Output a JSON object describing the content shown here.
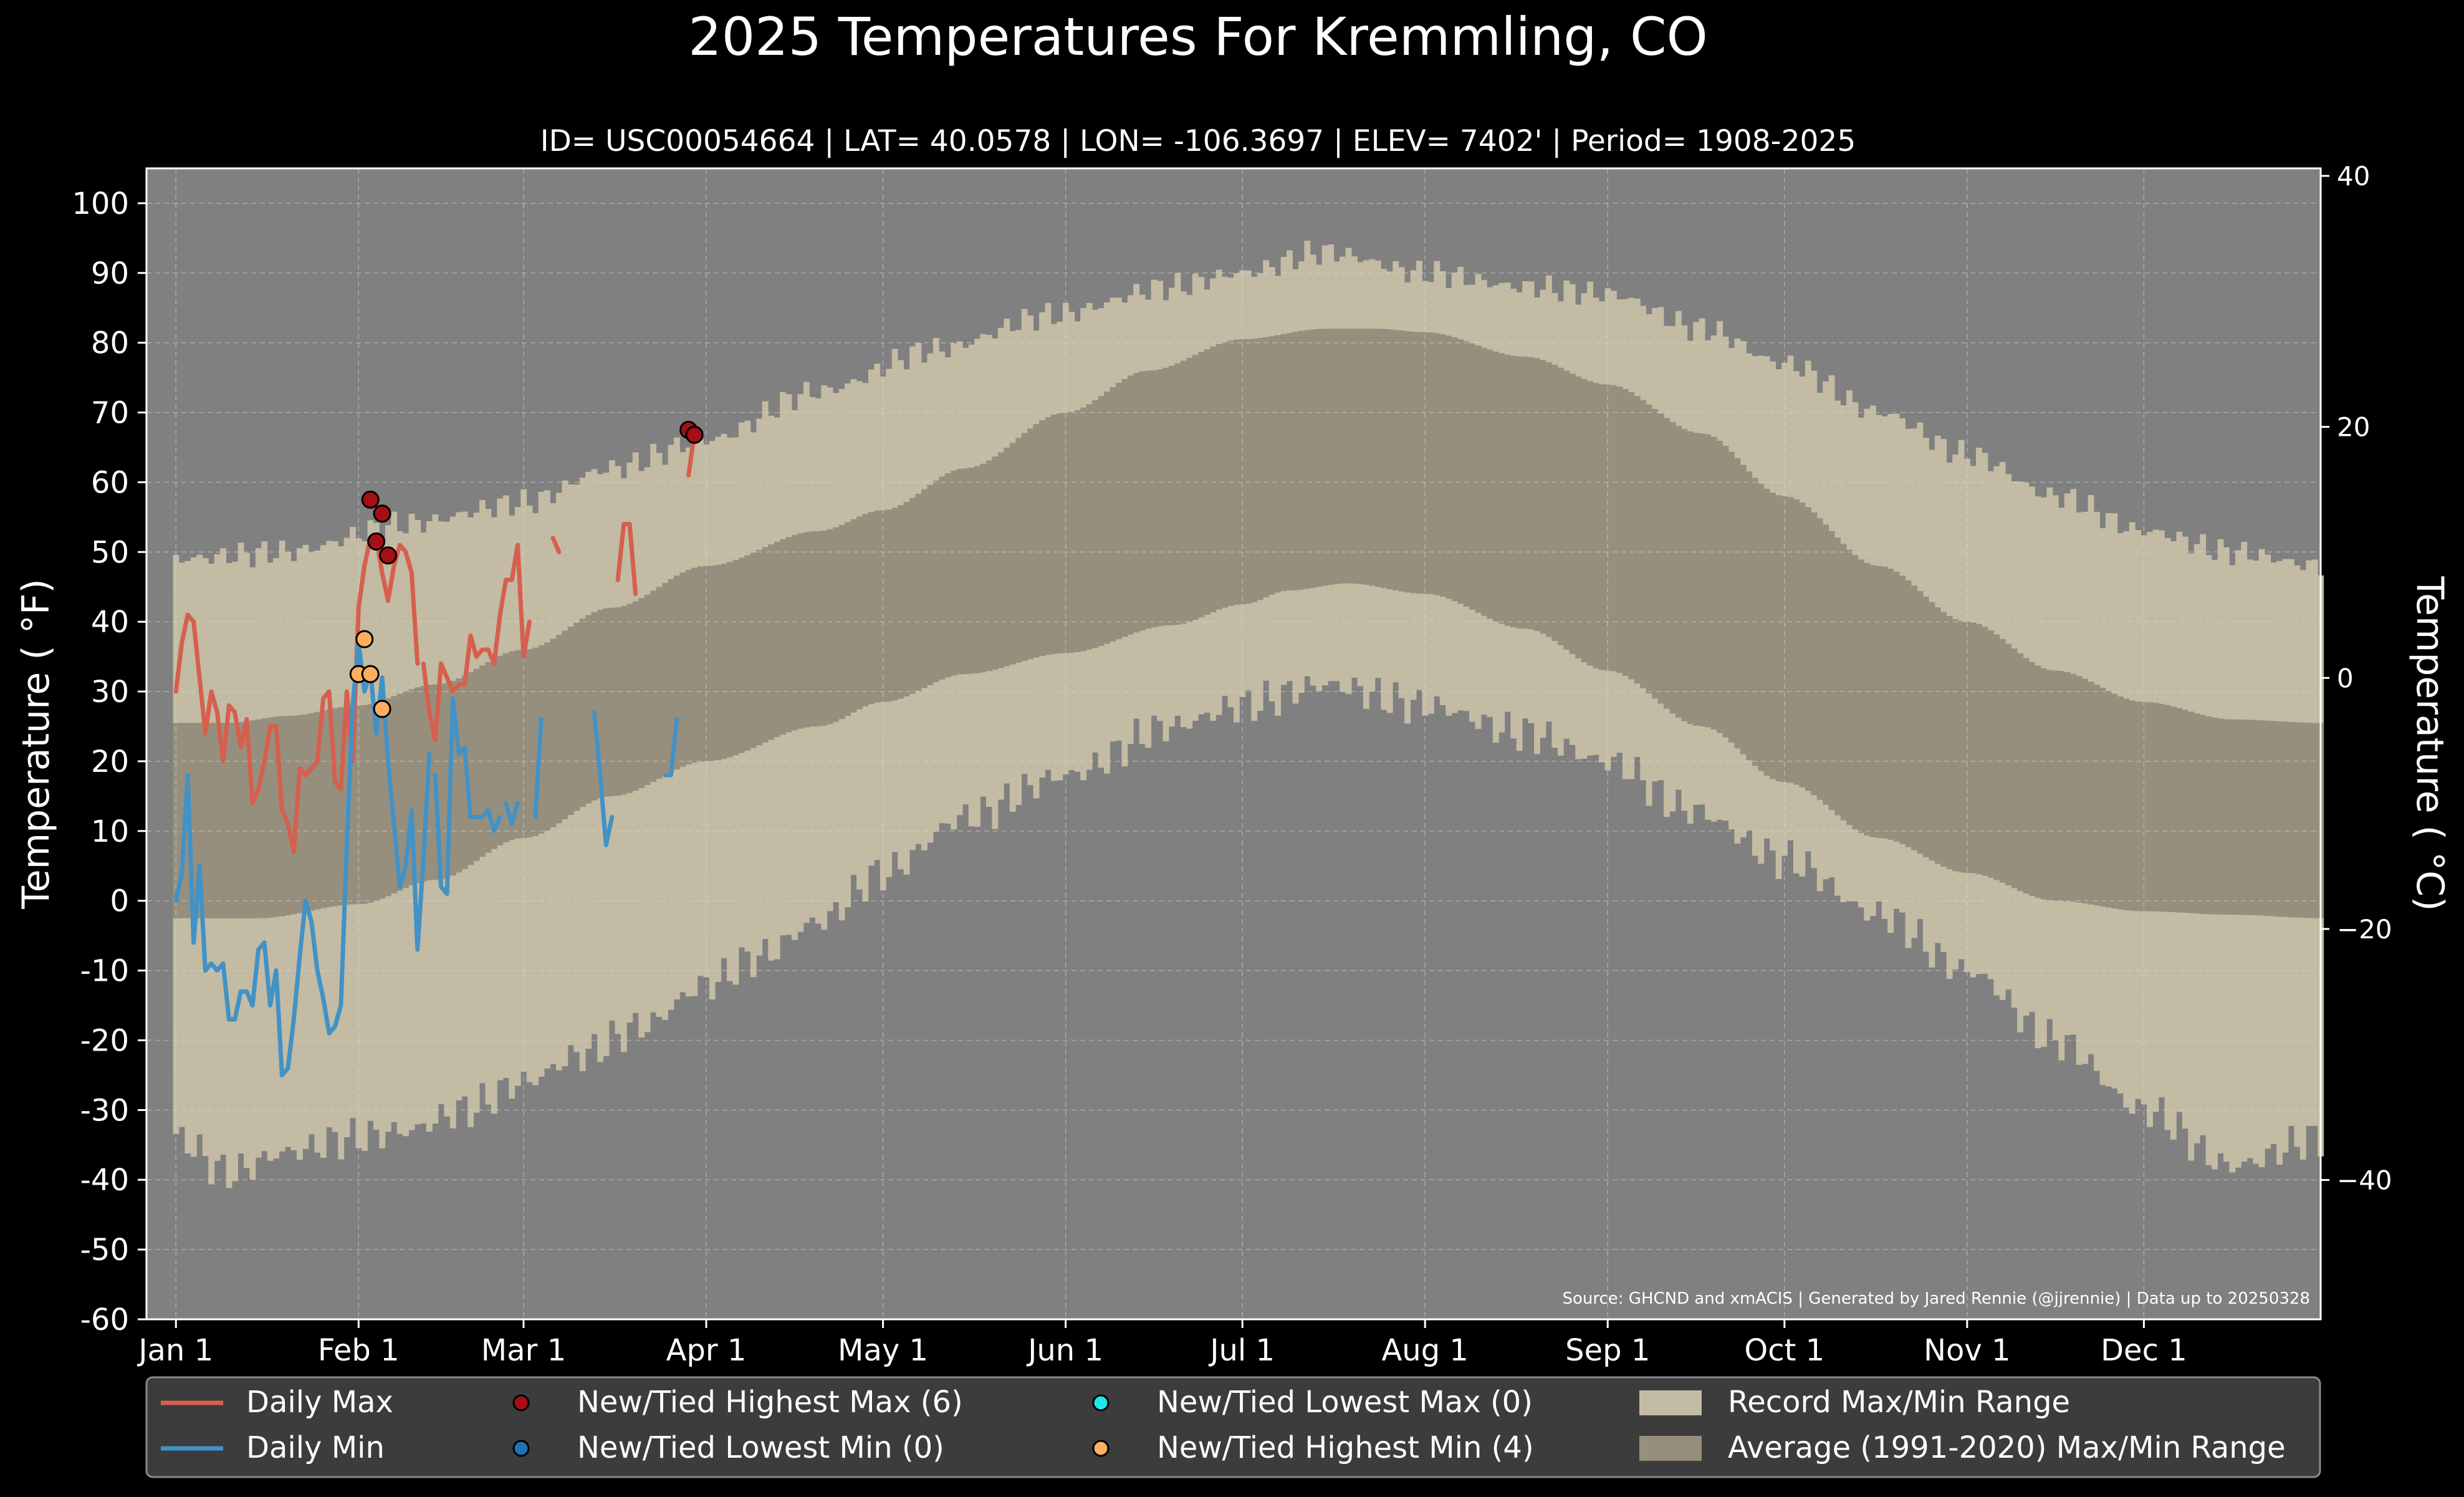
{
  "chart_data": {
    "type": "area",
    "title": "2025 Temperatures For Kremmling, CO",
    "subtitle": "ID= USC00054664 | LAT= 40.0578 | LON= -106.3697 | ELEV= 7402' | Period= 1908-2025",
    "ylabel": "Temperature ($^\\circ$F)",
    "ylabel_display": "Temperature ( °F)",
    "y2label_display": "Temperature ( °C)",
    "source": "Source: GHCND and xmACIS | Generated by Jared Rennie (@jjrennie) | Data up to 20250328",
    "ylim": [
      -60,
      105
    ],
    "y2lim": [
      -51.1,
      40.6
    ],
    "grid": true,
    "legend_location": "bottom",
    "y_ticks": [
      -60,
      -50,
      -40,
      -30,
      -20,
      -10,
      0,
      10,
      20,
      30,
      40,
      50,
      60,
      70,
      80,
      90,
      100
    ],
    "y2_ticks": [
      {
        "value": -40,
        "label": "−40"
      },
      {
        "value": -20,
        "label": "−20"
      },
      {
        "value": 0,
        "label": "0"
      },
      {
        "value": 20,
        "label": "20"
      },
      {
        "value": 40,
        "label": "40"
      }
    ],
    "x_ticks": [
      {
        "day": 1,
        "label": "Jan 1"
      },
      {
        "day": 32,
        "label": "Feb 1"
      },
      {
        "day": 60,
        "label": "Mar 1"
      },
      {
        "day": 91,
        "label": "Apr 1"
      },
      {
        "day": 121,
        "label": "May 1"
      },
      {
        "day": 152,
        "label": "Jun 1"
      },
      {
        "day": 182,
        "label": "Jul 1"
      },
      {
        "day": 213,
        "label": "Aug 1"
      },
      {
        "day": 244,
        "label": "Sep 1"
      },
      {
        "day": 274,
        "label": "Oct 1"
      },
      {
        "day": 305,
        "label": "Nov 1"
      },
      {
        "day": 335,
        "label": "Dec 1"
      }
    ],
    "xlim": [
      -4,
      365
    ],
    "colors": {
      "background": "#000000",
      "plot_bg": "#808080",
      "record": "#c3bba3",
      "average": "#978f7e",
      "daily_max": "#d65f4e",
      "daily_min": "#4292c6",
      "highest_max_marker": "#a50f15",
      "lowest_min_marker": "#2171b5",
      "lowest_max_marker": "#1ee8e8",
      "highest_min_marker": "#fdae61",
      "legend_bg": "#3c3c3c",
      "text": "#ffffff"
    },
    "record_high_knots": [
      [
        1,
        49
      ],
      [
        20,
        50
      ],
      [
        40,
        54
      ],
      [
        60,
        57
      ],
      [
        75,
        62
      ],
      [
        91,
        66
      ],
      [
        110,
        73
      ],
      [
        130,
        79
      ],
      [
        150,
        84
      ],
      [
        170,
        88
      ],
      [
        182,
        90
      ],
      [
        196,
        93
      ],
      [
        213,
        90
      ],
      [
        230,
        88
      ],
      [
        244,
        87
      ],
      [
        260,
        82
      ],
      [
        274,
        77
      ],
      [
        290,
        70
      ],
      [
        305,
        64
      ],
      [
        320,
        58
      ],
      [
        335,
        53
      ],
      [
        350,
        50
      ],
      [
        365,
        48
      ]
    ],
    "record_low_knots": [
      [
        1,
        -34
      ],
      [
        10,
        -39
      ],
      [
        20,
        -36
      ],
      [
        31,
        -34
      ],
      [
        40,
        -33
      ],
      [
        50,
        -30
      ],
      [
        60,
        -26
      ],
      [
        70,
        -22
      ],
      [
        80,
        -18
      ],
      [
        91,
        -12
      ],
      [
        100,
        -8
      ],
      [
        110,
        -3
      ],
      [
        121,
        4
      ],
      [
        135,
        12
      ],
      [
        152,
        18
      ],
      [
        170,
        25
      ],
      [
        182,
        28
      ],
      [
        196,
        31
      ],
      [
        213,
        28
      ],
      [
        230,
        24
      ],
      [
        244,
        20
      ],
      [
        258,
        13
      ],
      [
        274,
        6
      ],
      [
        290,
        -2
      ],
      [
        305,
        -10
      ],
      [
        320,
        -20
      ],
      [
        335,
        -30
      ],
      [
        350,
        -38
      ],
      [
        365,
        -34
      ]
    ],
    "average_high_knots": [
      [
        1,
        25.5
      ],
      [
        10,
        25.5
      ],
      [
        20,
        26.5
      ],
      [
        32,
        28
      ],
      [
        45,
        31
      ],
      [
        60,
        36
      ],
      [
        75,
        42
      ],
      [
        91,
        48
      ],
      [
        110,
        53
      ],
      [
        121,
        56
      ],
      [
        135,
        62
      ],
      [
        152,
        70
      ],
      [
        166,
        76
      ],
      [
        182,
        80.5
      ],
      [
        196,
        82
      ],
      [
        205,
        82
      ],
      [
        213,
        81.5
      ],
      [
        230,
        78
      ],
      [
        244,
        74
      ],
      [
        260,
        67
      ],
      [
        274,
        58
      ],
      [
        290,
        48
      ],
      [
        305,
        40
      ],
      [
        320,
        33
      ],
      [
        335,
        28.5
      ],
      [
        350,
        26
      ],
      [
        365,
        25.5
      ]
    ],
    "average_low_knots": [
      [
        1,
        -2.5
      ],
      [
        15,
        -2.5
      ],
      [
        32,
        -0.5
      ],
      [
        45,
        3
      ],
      [
        60,
        9
      ],
      [
        75,
        15
      ],
      [
        91,
        20
      ],
      [
        110,
        25
      ],
      [
        121,
        28.5
      ],
      [
        135,
        32.5
      ],
      [
        152,
        35.5
      ],
      [
        170,
        39.5
      ],
      [
        182,
        42.5
      ],
      [
        190,
        44.5
      ],
      [
        200,
        45.5
      ],
      [
        213,
        44
      ],
      [
        230,
        39
      ],
      [
        244,
        33
      ],
      [
        260,
        25
      ],
      [
        274,
        17
      ],
      [
        290,
        9
      ],
      [
        305,
        4
      ],
      [
        320,
        0
      ],
      [
        335,
        -1.5
      ],
      [
        350,
        -2
      ],
      [
        365,
        -2.5
      ]
    ],
    "daily_max": [
      [
        [
          1,
          30
        ],
        [
          2,
          37
        ],
        [
          3,
          41
        ],
        [
          4,
          40
        ],
        [
          5,
          32
        ],
        [
          6,
          24
        ],
        [
          7,
          30
        ],
        [
          8,
          27
        ],
        [
          9,
          20
        ],
        [
          10,
          28
        ],
        [
          11,
          27
        ],
        [
          12,
          22
        ],
        [
          13,
          26
        ],
        [
          14,
          14
        ],
        [
          15,
          16
        ],
        [
          16,
          20
        ],
        [
          17,
          25
        ],
        [
          18,
          25
        ],
        [
          19,
          13
        ],
        [
          20,
          11
        ],
        [
          21,
          7
        ],
        [
          22,
          19
        ],
        [
          23,
          18
        ],
        [
          24,
          19
        ],
        [
          25,
          20
        ],
        [
          26,
          29
        ],
        [
          27,
          30
        ],
        [
          28,
          17
        ],
        [
          29,
          16
        ],
        [
          30,
          30
        ],
        [
          31,
          20
        ],
        [
          32,
          42
        ],
        [
          33,
          48
        ],
        [
          34,
          52
        ],
        [
          35,
          52
        ],
        [
          36,
          47
        ],
        [
          37,
          43
        ],
        [
          38,
          48
        ],
        [
          39,
          51
        ],
        [
          40,
          50
        ],
        [
          41,
          47
        ],
        [
          42,
          34
        ]
      ],
      [
        [
          43,
          34
        ],
        [
          44,
          27
        ],
        [
          45,
          23
        ],
        [
          46,
          34
        ],
        [
          47,
          32
        ],
        [
          48,
          30
        ],
        [
          49,
          31
        ],
        [
          50,
          31
        ],
        [
          51,
          38
        ],
        [
          52,
          35
        ],
        [
          53,
          36
        ],
        [
          54,
          36
        ],
        [
          55,
          34
        ],
        [
          56,
          41
        ],
        [
          57,
          46
        ],
        [
          58,
          46
        ],
        [
          59,
          51
        ],
        [
          60,
          35
        ],
        [
          61,
          40
        ]
      ],
      [
        [
          65,
          52
        ],
        [
          66,
          50
        ]
      ],
      [
        [
          76,
          46
        ],
        [
          77,
          54
        ],
        [
          78,
          54
        ],
        [
          79,
          44
        ]
      ],
      [
        [
          88,
          61
        ],
        [
          89,
          67
        ],
        [
          90,
          67
        ]
      ]
    ],
    "daily_min": [
      [
        [
          1,
          0
        ],
        [
          2,
          4
        ],
        [
          3,
          18
        ],
        [
          4,
          -6
        ],
        [
          5,
          5
        ],
        [
          6,
          -10
        ],
        [
          7,
          -9
        ],
        [
          8,
          -10
        ],
        [
          9,
          -9
        ],
        [
          10,
          -17
        ],
        [
          11,
          -17
        ],
        [
          12,
          -13
        ],
        [
          13,
          -13
        ],
        [
          14,
          -15
        ],
        [
          15,
          -7
        ],
        [
          16,
          -6
        ],
        [
          17,
          -15
        ],
        [
          18,
          -10
        ],
        [
          19,
          -25
        ],
        [
          20,
          -24
        ],
        [
          21,
          -17
        ],
        [
          22,
          -8
        ],
        [
          23,
          0
        ],
        [
          24,
          -3
        ],
        [
          25,
          -10
        ],
        [
          26,
          -14
        ],
        [
          27,
          -19
        ],
        [
          28,
          -18
        ],
        [
          29,
          -15
        ],
        [
          30,
          8
        ],
        [
          31,
          28
        ],
        [
          32,
          37
        ],
        [
          33,
          30
        ],
        [
          34,
          33
        ],
        [
          35,
          24
        ],
        [
          36,
          32
        ],
        [
          37,
          20
        ],
        [
          38,
          11
        ],
        [
          39,
          2
        ],
        [
          40,
          5
        ],
        [
          41,
          13
        ],
        [
          42,
          -7
        ],
        [
          43,
          6
        ],
        [
          44,
          21
        ]
      ],
      [
        [
          45,
          18
        ],
        [
          46,
          2
        ],
        [
          47,
          1
        ],
        [
          48,
          29
        ],
        [
          49,
          21
        ],
        [
          50,
          22
        ],
        [
          51,
          12
        ],
        [
          52,
          12
        ],
        [
          53,
          12
        ],
        [
          54,
          13
        ],
        [
          55,
          10
        ],
        [
          56,
          12
        ]
      ],
      [
        [
          57,
          14
        ],
        [
          58,
          11
        ],
        [
          59,
          14
        ]
      ],
      [
        [
          62,
          12
        ],
        [
          63,
          26
        ]
      ],
      [
        [
          72,
          27
        ],
        [
          73,
          18
        ],
        [
          74,
          8
        ],
        [
          75,
          12
        ]
      ],
      [
        [
          84,
          18
        ],
        [
          85,
          18
        ],
        [
          86,
          26
        ]
      ]
    ],
    "new_highest_max": [
      [
        34,
        57.5
      ],
      [
        35,
        51.5
      ],
      [
        36,
        55.5
      ],
      [
        37,
        49.5
      ],
      [
        88,
        67.5
      ],
      [
        89,
        66.8
      ]
    ],
    "new_lowest_min": [],
    "new_lowest_max": [],
    "new_highest_min": [
      [
        32,
        32.5
      ],
      [
        33,
        37.5
      ],
      [
        34,
        32.5
      ],
      [
        36,
        27.5
      ]
    ]
  },
  "legend": {
    "daily_max": "Daily Max",
    "daily_min": "Daily Min",
    "new_highest_max": "New/Tied Highest Max (6)",
    "new_lowest_min": "New/Tied Lowest Min (0)",
    "new_lowest_max": "New/Tied Lowest Max (0)",
    "new_highest_min": "New/Tied Highest Min (4)",
    "record_range": "Record Max/Min Range",
    "average_range": "Average (1991-2020) Max/Min Range"
  }
}
